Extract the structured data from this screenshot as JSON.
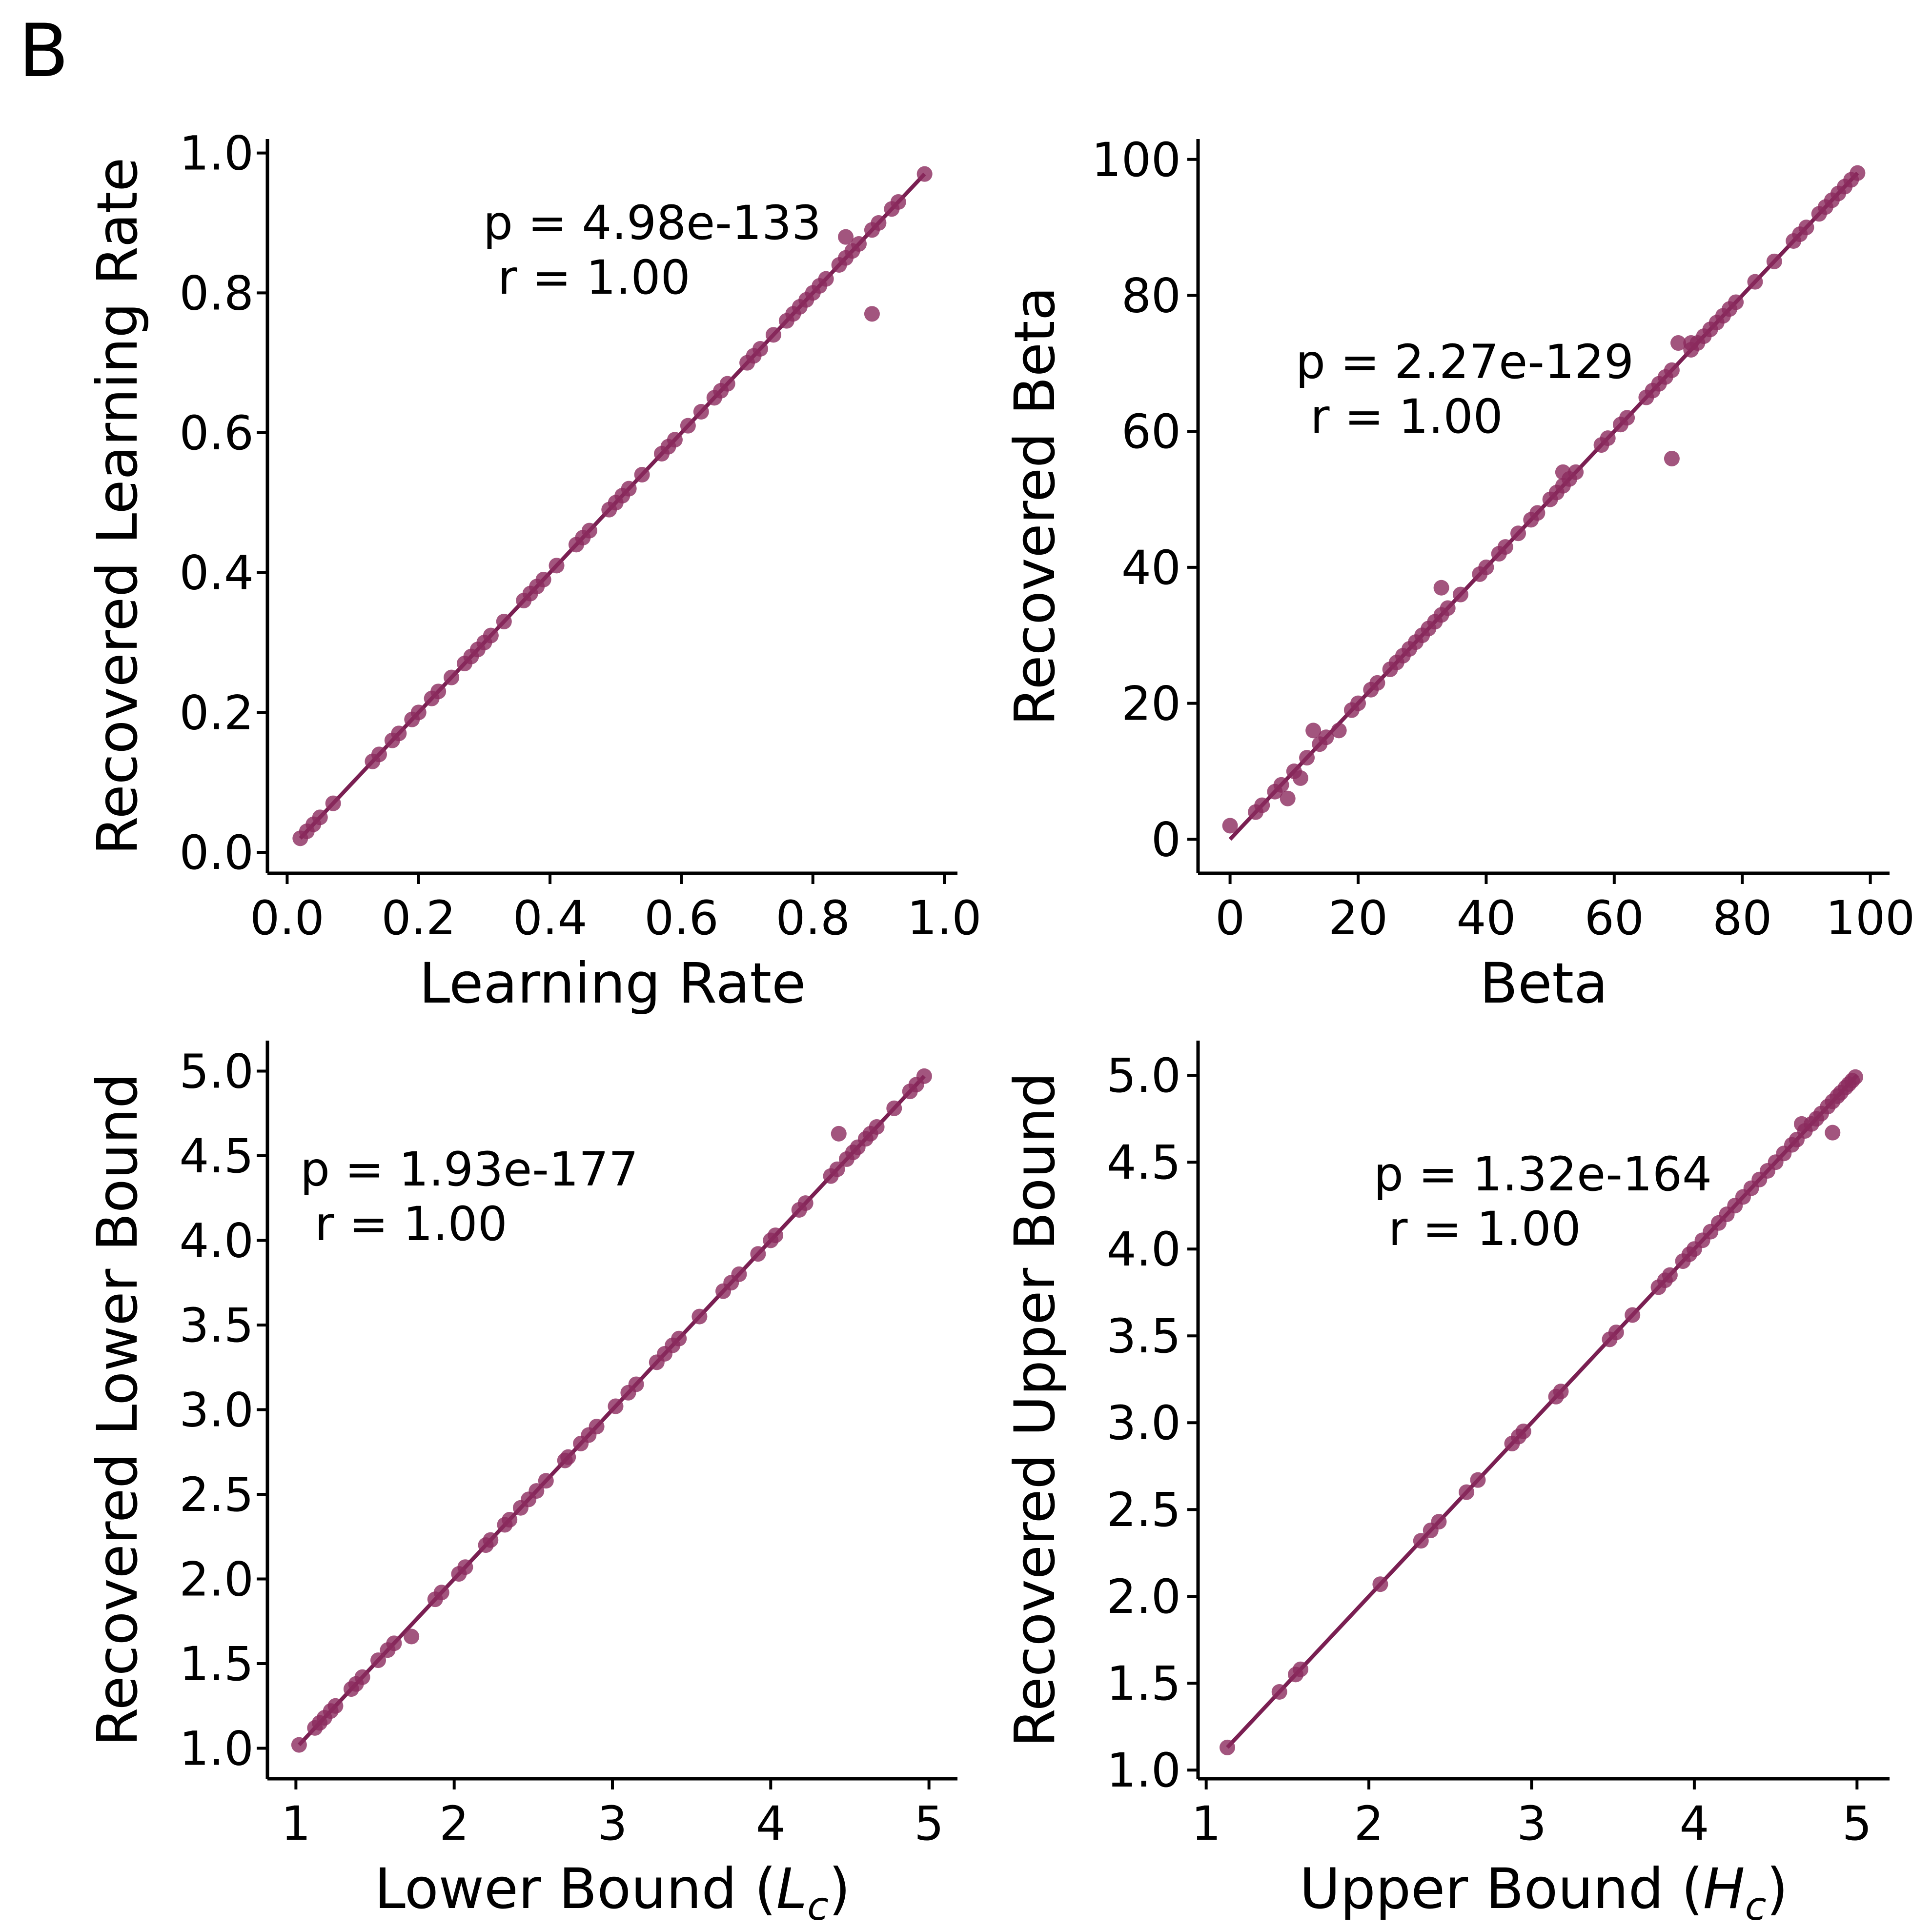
{
  "panel_label": "B",
  "colors": {
    "marker": "#8b2a5e",
    "line": "#7a1f52",
    "axis": "#000000"
  },
  "chart_data": [
    {
      "type": "scatter",
      "id": "lr",
      "xlabel": "Learning Rate",
      "ylabel": "Recovered Learning Rate",
      "xlim": [
        -0.03,
        1.02
      ],
      "ylim": [
        -0.03,
        1.02
      ],
      "xticks": [
        0.0,
        0.2,
        0.4,
        0.6,
        0.8,
        1.0
      ],
      "xtick_labels": [
        "0.0",
        "0.2",
        "0.4",
        "0.6",
        "0.8",
        "1.0"
      ],
      "yticks": [
        0.0,
        0.2,
        0.4,
        0.6,
        0.8,
        1.0
      ],
      "ytick_labels": [
        "0.0",
        "0.2",
        "0.4",
        "0.6",
        "0.8",
        "1.0"
      ],
      "stats": {
        "p": "p = 4.98e-133",
        "r": "r = 1.00"
      },
      "fit": {
        "slope": 1.0,
        "intercept": 0.0,
        "x_range": [
          0.02,
          0.97
        ]
      },
      "points": [
        [
          0.02,
          0.02
        ],
        [
          0.03,
          0.03
        ],
        [
          0.04,
          0.04
        ],
        [
          0.05,
          0.05
        ],
        [
          0.07,
          0.07
        ],
        [
          0.13,
          0.13
        ],
        [
          0.14,
          0.14
        ],
        [
          0.16,
          0.16
        ],
        [
          0.17,
          0.17
        ],
        [
          0.19,
          0.19
        ],
        [
          0.2,
          0.2
        ],
        [
          0.22,
          0.22
        ],
        [
          0.23,
          0.23
        ],
        [
          0.25,
          0.25
        ],
        [
          0.27,
          0.27
        ],
        [
          0.28,
          0.28
        ],
        [
          0.29,
          0.29
        ],
        [
          0.3,
          0.3
        ],
        [
          0.31,
          0.31
        ],
        [
          0.33,
          0.33
        ],
        [
          0.36,
          0.36
        ],
        [
          0.37,
          0.37
        ],
        [
          0.38,
          0.38
        ],
        [
          0.39,
          0.39
        ],
        [
          0.41,
          0.41
        ],
        [
          0.44,
          0.44
        ],
        [
          0.45,
          0.45
        ],
        [
          0.46,
          0.46
        ],
        [
          0.49,
          0.49
        ],
        [
          0.5,
          0.5
        ],
        [
          0.51,
          0.51
        ],
        [
          0.52,
          0.52
        ],
        [
          0.54,
          0.54
        ],
        [
          0.57,
          0.57
        ],
        [
          0.58,
          0.58
        ],
        [
          0.59,
          0.59
        ],
        [
          0.61,
          0.61
        ],
        [
          0.63,
          0.63
        ],
        [
          0.65,
          0.65
        ],
        [
          0.66,
          0.66
        ],
        [
          0.67,
          0.67
        ],
        [
          0.7,
          0.7
        ],
        [
          0.71,
          0.71
        ],
        [
          0.72,
          0.72
        ],
        [
          0.74,
          0.74
        ],
        [
          0.76,
          0.76
        ],
        [
          0.77,
          0.77
        ],
        [
          0.78,
          0.78
        ],
        [
          0.79,
          0.79
        ],
        [
          0.8,
          0.8
        ],
        [
          0.81,
          0.81
        ],
        [
          0.82,
          0.82
        ],
        [
          0.84,
          0.84
        ],
        [
          0.85,
          0.85
        ],
        [
          0.86,
          0.86
        ],
        [
          0.87,
          0.87
        ],
        [
          0.89,
          0.89
        ],
        [
          0.9,
          0.9
        ],
        [
          0.92,
          0.92
        ],
        [
          0.93,
          0.93
        ],
        [
          0.97,
          0.97
        ],
        [
          0.85,
          0.88
        ],
        [
          0.89,
          0.77
        ]
      ]
    },
    {
      "type": "scatter",
      "id": "beta",
      "xlabel": "Beta",
      "ylabel": "Recovered Beta",
      "xlim": [
        -5,
        103
      ],
      "ylim": [
        -5,
        103
      ],
      "xticks": [
        0,
        20,
        40,
        60,
        80,
        100
      ],
      "xtick_labels": [
        "0",
        "20",
        "40",
        "60",
        "80",
        "100"
      ],
      "yticks": [
        0,
        20,
        40,
        60,
        80,
        100
      ],
      "ytick_labels": [
        "0",
        "20",
        "40",
        "60",
        "80",
        "100"
      ],
      "stats": {
        "p": "p = 2.27e-129",
        "r": "r = 1.00"
      },
      "fit": {
        "slope": 1.0,
        "intercept": 0.0,
        "x_range": [
          0,
          98
        ]
      },
      "points": [
        [
          4,
          4
        ],
        [
          5,
          5
        ],
        [
          7,
          7
        ],
        [
          8,
          8
        ],
        [
          10,
          10
        ],
        [
          12,
          12
        ],
        [
          14,
          14
        ],
        [
          15,
          15
        ],
        [
          17,
          16
        ],
        [
          19,
          19
        ],
        [
          20,
          20
        ],
        [
          22,
          22
        ],
        [
          23,
          23
        ],
        [
          25,
          25
        ],
        [
          26,
          26
        ],
        [
          27,
          27
        ],
        [
          28,
          28
        ],
        [
          29,
          29
        ],
        [
          30,
          30
        ],
        [
          31,
          31
        ],
        [
          32,
          32
        ],
        [
          33,
          33
        ],
        [
          34,
          34
        ],
        [
          36,
          36
        ],
        [
          39,
          39
        ],
        [
          40,
          40
        ],
        [
          42,
          42
        ],
        [
          43,
          43
        ],
        [
          45,
          45
        ],
        [
          47,
          47
        ],
        [
          48,
          48
        ],
        [
          50,
          50
        ],
        [
          51,
          51
        ],
        [
          52,
          52
        ],
        [
          53,
          53
        ],
        [
          54,
          54
        ],
        [
          58,
          58
        ],
        [
          59,
          59
        ],
        [
          61,
          61
        ],
        [
          62,
          62
        ],
        [
          65,
          65
        ],
        [
          66,
          66
        ],
        [
          67,
          67
        ],
        [
          68,
          68
        ],
        [
          69,
          69
        ],
        [
          72,
          72
        ],
        [
          73,
          73
        ],
        [
          74,
          74
        ],
        [
          75,
          75
        ],
        [
          76,
          76
        ],
        [
          77,
          77
        ],
        [
          78,
          78
        ],
        [
          79,
          79
        ],
        [
          82,
          82
        ],
        [
          85,
          85
        ],
        [
          88,
          88
        ],
        [
          89,
          89
        ],
        [
          90,
          90
        ],
        [
          92,
          92
        ],
        [
          93,
          93
        ],
        [
          94,
          94
        ],
        [
          95,
          95
        ],
        [
          96,
          96
        ],
        [
          97,
          97
        ],
        [
          98,
          98
        ],
        [
          0,
          2
        ],
        [
          9,
          6
        ],
        [
          11,
          9
        ],
        [
          13,
          16
        ],
        [
          33,
          37
        ],
        [
          52,
          54
        ],
        [
          70,
          73
        ],
        [
          72,
          73
        ],
        [
          69,
          56
        ]
      ]
    },
    {
      "type": "scatter",
      "id": "lower",
      "xlabel": "Lower Bound (",
      "xlabel_sym": "L",
      "xlabel_sub": "c",
      "xlabel_end": ")",
      "ylabel": "Recovered Lower Bound",
      "xlim": [
        0.82,
        5.18
      ],
      "ylim": [
        0.82,
        5.18
      ],
      "xticks": [
        1,
        2,
        3,
        4,
        5
      ],
      "xtick_labels": [
        "1",
        "2",
        "3",
        "4",
        "5"
      ],
      "yticks": [
        1.0,
        1.5,
        2.0,
        2.5,
        3.0,
        3.5,
        4.0,
        4.5,
        5.0
      ],
      "ytick_labels": [
        "1.0",
        "1.5",
        "2.0",
        "2.5",
        "3.0",
        "3.5",
        "4.0",
        "4.5",
        "5.0"
      ],
      "stats": {
        "p": "p = 1.93e-177",
        "r": "r = 1.00"
      },
      "fit": {
        "slope": 1.0,
        "intercept": 0.0,
        "x_range": [
          1.02,
          4.97
        ]
      },
      "points": [
        [
          1.02,
          1.02
        ],
        [
          1.12,
          1.12
        ],
        [
          1.15,
          1.15
        ],
        [
          1.18,
          1.18
        ],
        [
          1.22,
          1.22
        ],
        [
          1.25,
          1.25
        ],
        [
          1.35,
          1.35
        ],
        [
          1.38,
          1.38
        ],
        [
          1.42,
          1.42
        ],
        [
          1.52,
          1.52
        ],
        [
          1.58,
          1.58
        ],
        [
          1.62,
          1.62
        ],
        [
          1.88,
          1.88
        ],
        [
          1.92,
          1.92
        ],
        [
          2.03,
          2.03
        ],
        [
          2.07,
          2.07
        ],
        [
          2.2,
          2.2
        ],
        [
          2.23,
          2.23
        ],
        [
          2.32,
          2.32
        ],
        [
          2.35,
          2.35
        ],
        [
          2.42,
          2.42
        ],
        [
          2.47,
          2.47
        ],
        [
          2.52,
          2.52
        ],
        [
          2.58,
          2.58
        ],
        [
          2.7,
          2.7
        ],
        [
          2.72,
          2.72
        ],
        [
          2.8,
          2.8
        ],
        [
          2.85,
          2.85
        ],
        [
          2.9,
          2.9
        ],
        [
          3.02,
          3.02
        ],
        [
          3.1,
          3.1
        ],
        [
          3.15,
          3.15
        ],
        [
          3.28,
          3.28
        ],
        [
          3.33,
          3.33
        ],
        [
          3.38,
          3.38
        ],
        [
          3.42,
          3.42
        ],
        [
          3.55,
          3.55
        ],
        [
          3.7,
          3.7
        ],
        [
          3.75,
          3.75
        ],
        [
          3.8,
          3.8
        ],
        [
          3.92,
          3.92
        ],
        [
          4.0,
          4.0
        ],
        [
          4.03,
          4.03
        ],
        [
          4.18,
          4.18
        ],
        [
          4.22,
          4.22
        ],
        [
          4.38,
          4.38
        ],
        [
          4.42,
          4.42
        ],
        [
          4.48,
          4.48
        ],
        [
          4.52,
          4.52
        ],
        [
          4.55,
          4.55
        ],
        [
          4.6,
          4.6
        ],
        [
          4.63,
          4.63
        ],
        [
          4.67,
          4.67
        ],
        [
          4.78,
          4.78
        ],
        [
          4.88,
          4.88
        ],
        [
          4.92,
          4.92
        ],
        [
          4.97,
          4.97
        ],
        [
          1.73,
          1.66
        ],
        [
          4.43,
          4.63
        ]
      ]
    },
    {
      "type": "scatter",
      "id": "upper",
      "xlabel": "Upper Bound (",
      "xlabel_sym": "H",
      "xlabel_sub": "c",
      "xlabel_end": ")",
      "ylabel": "Recovered Upper Bound",
      "xlim": [
        0.95,
        5.2
      ],
      "ylim": [
        0.95,
        5.2
      ],
      "xticks": [
        1,
        2,
        3,
        4,
        5
      ],
      "xtick_labels": [
        "1",
        "2",
        "3",
        "4",
        "5"
      ],
      "yticks": [
        1.0,
        1.5,
        2.0,
        2.5,
        3.0,
        3.5,
        4.0,
        4.5,
        5.0
      ],
      "ytick_labels": [
        "1.0",
        "1.5",
        "2.0",
        "2.5",
        "3.0",
        "3.5",
        "4.0",
        "4.5",
        "5.0"
      ],
      "stats": {
        "p": "p = 1.32e-164",
        "r": "r = 1.00"
      },
      "fit": {
        "slope": 1.0,
        "intercept": 0.0,
        "x_range": [
          1.13,
          5.0
        ]
      },
      "points": [
        [
          1.13,
          1.13
        ],
        [
          1.45,
          1.45
        ],
        [
          1.55,
          1.55
        ],
        [
          1.58,
          1.58
        ],
        [
          2.07,
          2.07
        ],
        [
          2.32,
          2.32
        ],
        [
          2.38,
          2.38
        ],
        [
          2.43,
          2.43
        ],
        [
          2.6,
          2.6
        ],
        [
          2.67,
          2.67
        ],
        [
          2.88,
          2.88
        ],
        [
          2.92,
          2.92
        ],
        [
          2.95,
          2.95
        ],
        [
          3.15,
          3.15
        ],
        [
          3.18,
          3.18
        ],
        [
          3.48,
          3.48
        ],
        [
          3.52,
          3.52
        ],
        [
          3.62,
          3.62
        ],
        [
          3.78,
          3.78
        ],
        [
          3.82,
          3.82
        ],
        [
          3.85,
          3.85
        ],
        [
          3.93,
          3.93
        ],
        [
          3.97,
          3.97
        ],
        [
          4.0,
          4.0
        ],
        [
          4.05,
          4.05
        ],
        [
          4.1,
          4.1
        ],
        [
          4.15,
          4.15
        ],
        [
          4.2,
          4.2
        ],
        [
          4.25,
          4.25
        ],
        [
          4.3,
          4.3
        ],
        [
          4.35,
          4.35
        ],
        [
          4.4,
          4.4
        ],
        [
          4.45,
          4.45
        ],
        [
          4.5,
          4.5
        ],
        [
          4.55,
          4.55
        ],
        [
          4.6,
          4.6
        ],
        [
          4.63,
          4.63
        ],
        [
          4.68,
          4.68
        ],
        [
          4.72,
          4.72
        ],
        [
          4.75,
          4.75
        ],
        [
          4.78,
          4.78
        ],
        [
          4.82,
          4.82
        ],
        [
          4.85,
          4.85
        ],
        [
          4.88,
          4.88
        ],
        [
          4.9,
          4.9
        ],
        [
          4.93,
          4.93
        ],
        [
          4.95,
          4.95
        ],
        [
          4.97,
          4.97
        ],
        [
          4.99,
          4.99
        ],
        [
          4.66,
          4.72
        ],
        [
          4.85,
          4.67
        ]
      ]
    }
  ]
}
